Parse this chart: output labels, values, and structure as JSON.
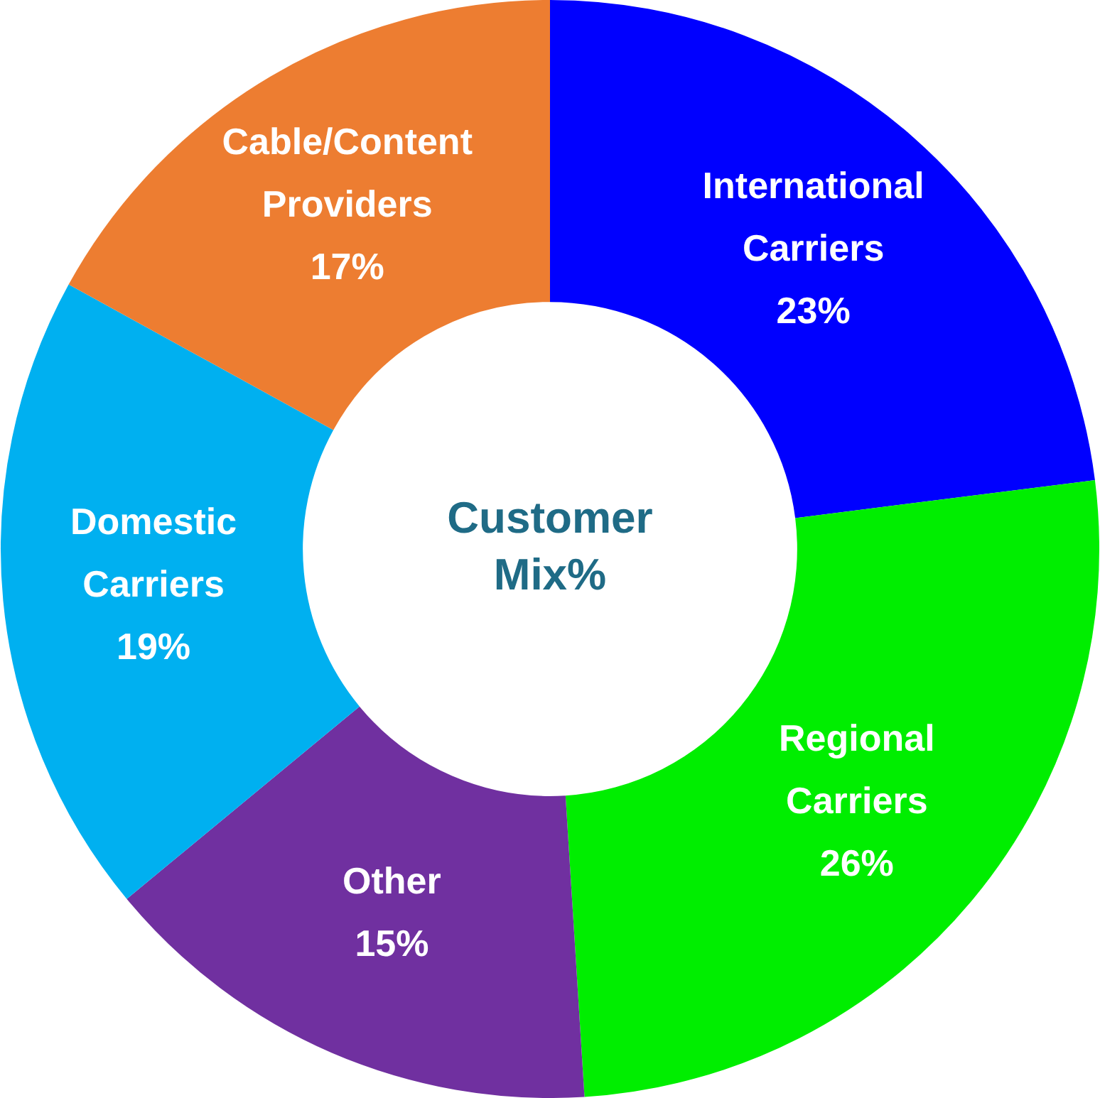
{
  "chart_data": {
    "type": "donut",
    "title": "Customer Mix%",
    "categories": [
      "International Carriers",
      "Regional Carriers",
      "Other",
      "Domestic Carriers",
      "Cable/Content Providers"
    ],
    "values": [
      23,
      26,
      15,
      19,
      17
    ],
    "value_labels": [
      "23%",
      "26%",
      "15%",
      "19%",
      "17%"
    ],
    "colors": [
      "#0000ff",
      "#00ee00",
      "#7030a0",
      "#00b0f0",
      "#ed7d31"
    ],
    "legend": false
  }
}
